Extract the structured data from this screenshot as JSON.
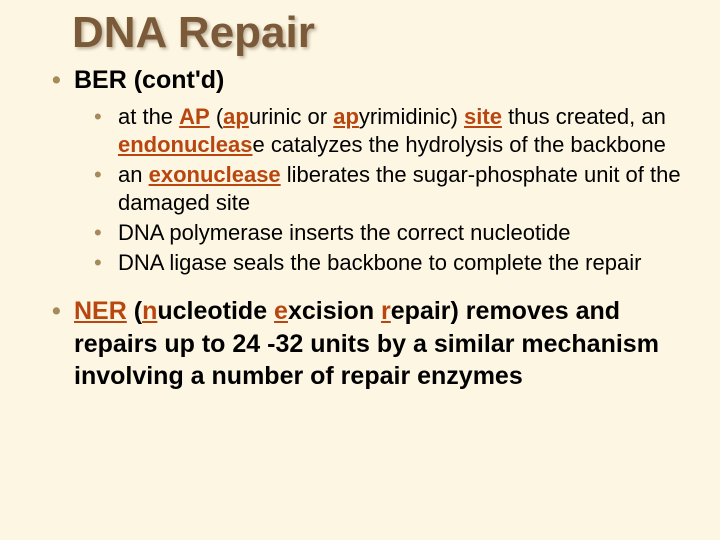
{
  "colors": {
    "background": "#fdf6e3",
    "title_color": "#7b5a3a",
    "bullet_color": "#a68a5b",
    "term_color": "#b8460e",
    "text_color": "#000000"
  },
  "typography": {
    "title_fontsize": 44,
    "level1_fontsize": 25,
    "level2_fontsize": 22,
    "font_family": "Arial"
  },
  "title": "DNA Repair",
  "sections": {
    "ber": {
      "heading": "BER (cont'd)",
      "sub": {
        "a": {
          "pre": "at the ",
          "t1": "AP",
          "mid1": " (",
          "t2": "ap",
          "mid2": "urinic or ",
          "t3": "ap",
          "mid3": "yrimidinic) ",
          "t4": "site",
          "mid4": " thus created, an ",
          "t5": "endonucleas",
          "post": "e catalyzes the hydrolysis of the backbone"
        },
        "b": {
          "pre": "an ",
          "t1": "exonuclease",
          "post": " liberates the sugar-phosphate unit of the damaged site"
        },
        "c": "DNA polymerase inserts the correct nucleotide",
        "d": "DNA ligase seals the backbone to complete the repair"
      }
    },
    "ner": {
      "t1": "NER",
      "mid1": " (",
      "t2": "n",
      "mid2": "ucleotide ",
      "t3": "e",
      "mid3": "xcision ",
      "t4": "r",
      "post": "epair) removes and repairs up to 24 -32 units by a similar mechanism involving a number of repair enzymes"
    }
  }
}
